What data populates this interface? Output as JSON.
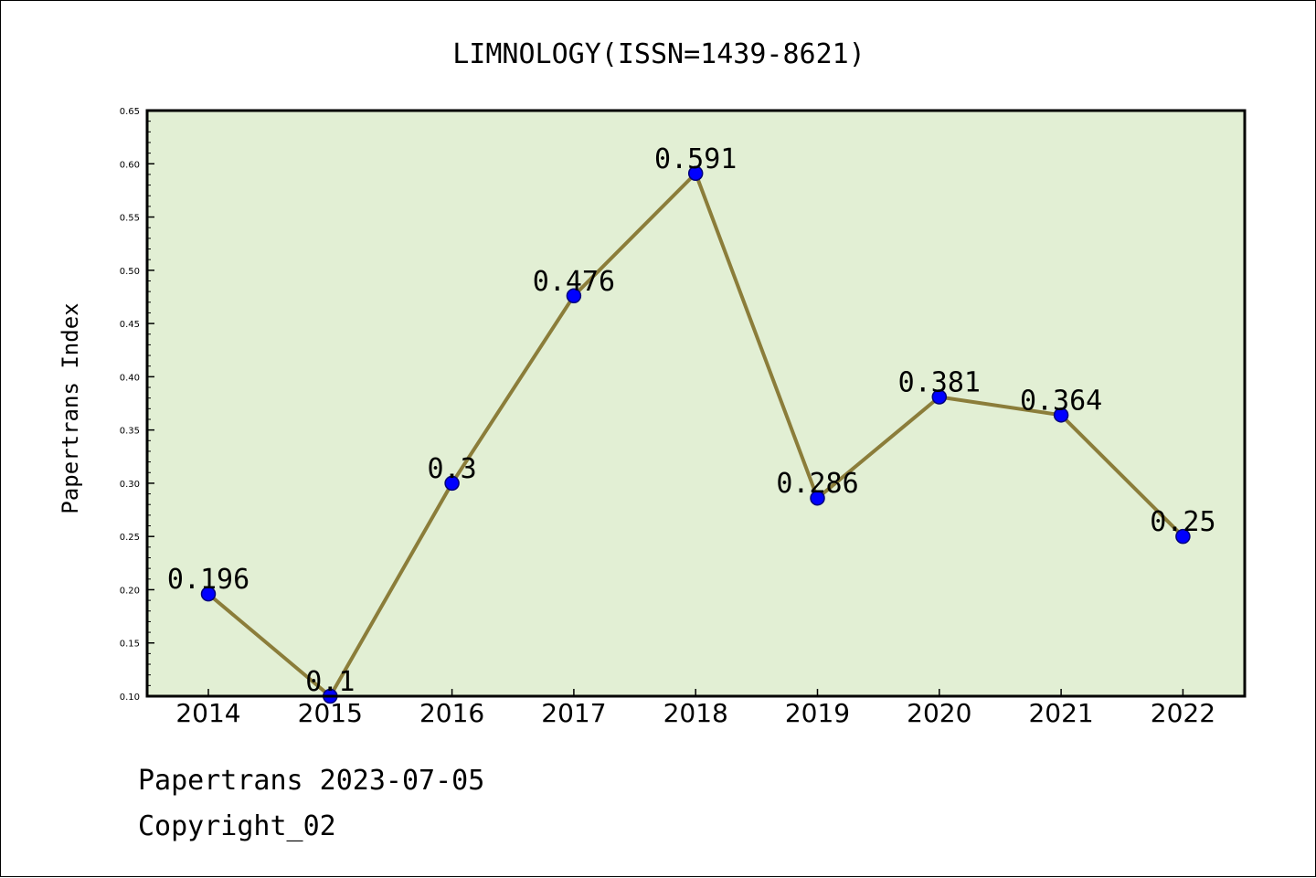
{
  "chart_data": {
    "type": "line",
    "title": "LIMNOLOGY(ISSN=1439-8621)",
    "xlabel": "",
    "ylabel": "Papertrans Index",
    "categories": [
      "2014",
      "2015",
      "2016",
      "2017",
      "2018",
      "2019",
      "2020",
      "2021",
      "2022"
    ],
    "values": [
      0.196,
      0.1,
      0.3,
      0.476,
      0.591,
      0.286,
      0.381,
      0.364,
      0.25
    ],
    "data_labels": [
      "0.196",
      "0.1",
      "0.3",
      "0.476",
      "0.591",
      "0.286",
      "0.381",
      "0.364",
      "0.25"
    ],
    "ylim": [
      0.1,
      0.65
    ],
    "yticks": [
      "0.10",
      "0.15",
      "0.20",
      "0.25",
      "0.30",
      "0.35",
      "0.40",
      "0.45",
      "0.50",
      "0.55",
      "0.60",
      "0.65"
    ],
    "grid": false,
    "colors": {
      "plot_background": "#e2efd4",
      "line": "#8b7d3a",
      "marker": "#0000ff",
      "marker_edge": "#00007a"
    }
  },
  "footer": {
    "line1": "Papertrans 2023-07-05",
    "line2": "Copyright_02"
  }
}
